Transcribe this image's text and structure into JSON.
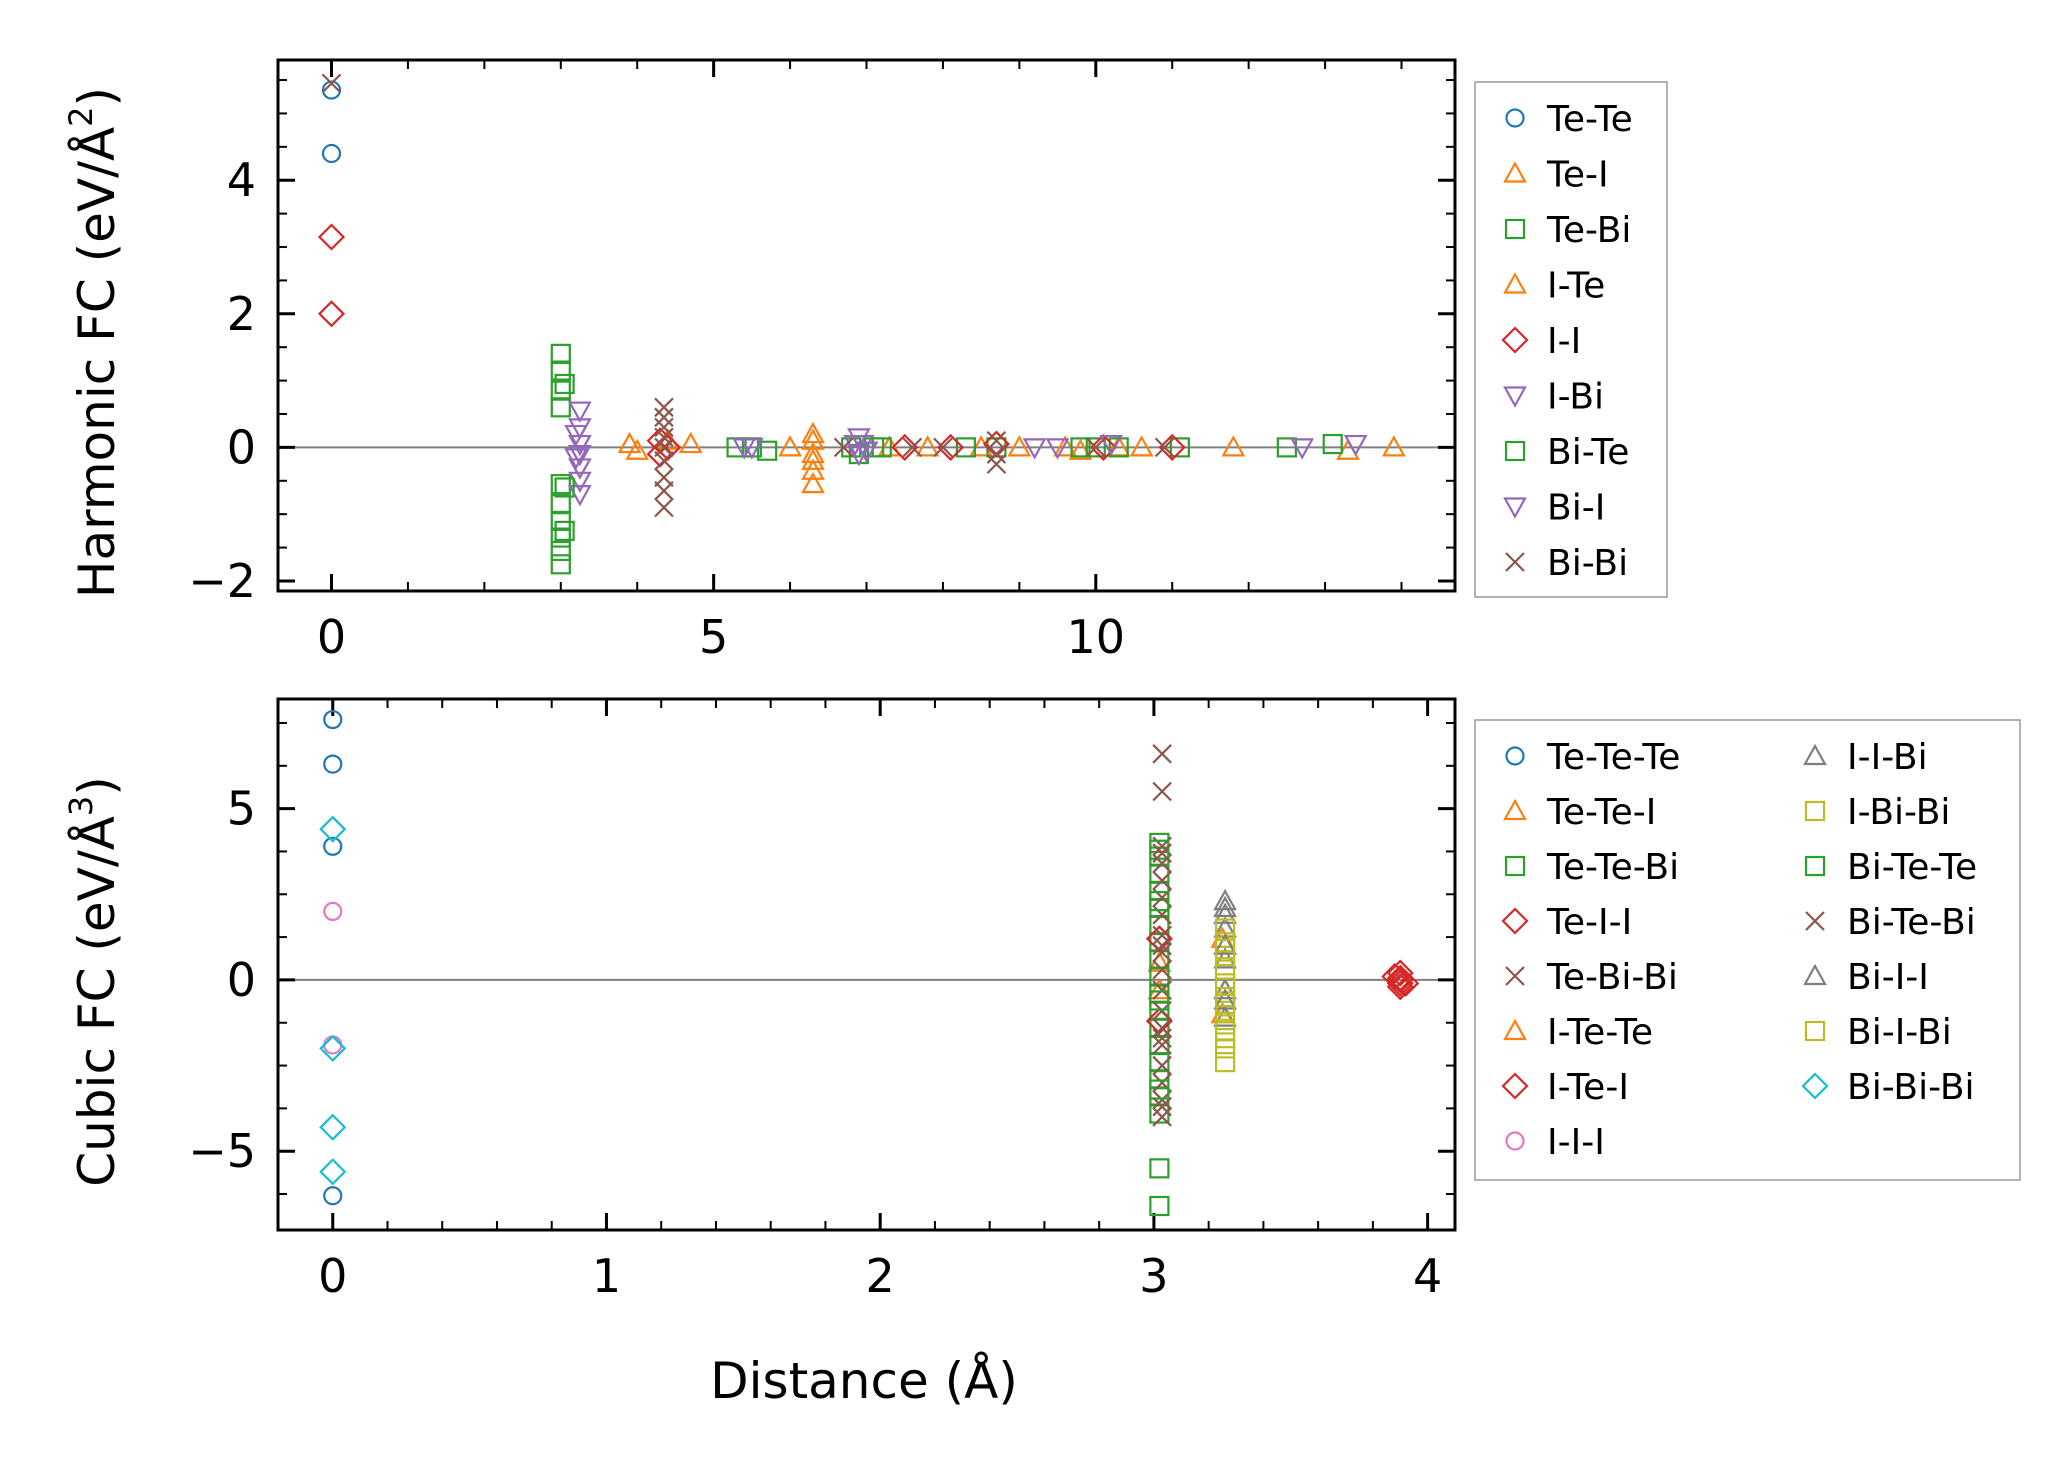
{
  "figure": {
    "xlabel": "Distance (Å)"
  },
  "chart_data": [
    {
      "type": "scatter",
      "title": "",
      "ylabel_main": "Harmonic FC (eV/Å",
      "ylabel_sup": "2",
      "ylabel_close": ")",
      "xlim": [
        -0.7,
        14.7
      ],
      "ylim": [
        -2.15,
        5.8
      ],
      "xticks": [
        0,
        5,
        10
      ],
      "xtick_labels": [
        "0",
        "5",
        "10"
      ],
      "yticks": [
        -2,
        0,
        2,
        4
      ],
      "ytick_labels": [
        "−2",
        "0",
        "2",
        "4"
      ],
      "grid": false,
      "legend_position": "right",
      "legend_columns": 1,
      "series": [
        {
          "name": "Te-Te",
          "marker": "circle",
          "color": "#1f77b4",
          "points": [
            [
              0,
              5.35
            ],
            [
              0,
              4.4
            ]
          ]
        },
        {
          "name": "Te-I",
          "marker": "triangle-up",
          "color": "#ff7f0e",
          "points": [
            [
              3.9,
              0.05
            ],
            [
              4.0,
              -0.05
            ],
            [
              4.7,
              0.05
            ],
            [
              6.3,
              0.2
            ],
            [
              6.3,
              0.1
            ],
            [
              6.3,
              -0.2
            ],
            [
              6.3,
              -0.35
            ],
            [
              6.3,
              -0.55
            ],
            [
              7.3,
              0
            ],
            [
              8.5,
              0
            ],
            [
              9.0,
              0
            ],
            [
              9.8,
              -0.05
            ],
            [
              10.3,
              0
            ],
            [
              10.6,
              0
            ],
            [
              11.8,
              0
            ],
            [
              13.3,
              -0.05
            ],
            [
              13.9,
              0
            ]
          ]
        },
        {
          "name": "Te-Bi",
          "marker": "square",
          "color": "#2ca02c",
          "points": [
            [
              3.0,
              1.4
            ],
            [
              3.0,
              1.15
            ],
            [
              3.0,
              0.85
            ],
            [
              3.0,
              0.6
            ],
            [
              3.0,
              -0.55
            ],
            [
              3.0,
              -0.85
            ],
            [
              3.0,
              -1.1
            ],
            [
              3.0,
              -1.35
            ],
            [
              3.0,
              -1.55
            ],
            [
              3.0,
              -1.75
            ],
            [
              5.3,
              0
            ],
            [
              5.5,
              0
            ],
            [
              5.7,
              -0.05
            ],
            [
              6.8,
              0
            ],
            [
              6.9,
              -0.1
            ],
            [
              7.1,
              0
            ],
            [
              8.3,
              0
            ],
            [
              8.7,
              0
            ],
            [
              10.0,
              0
            ],
            [
              10.3,
              0
            ],
            [
              11.1,
              0
            ],
            [
              12.5,
              0
            ],
            [
              13.1,
              0.05
            ]
          ]
        },
        {
          "name": "I-Te",
          "marker": "triangle-up",
          "color": "#ff7f0e",
          "points": [
            [
              4.4,
              0.1
            ],
            [
              6.0,
              0
            ],
            [
              6.3,
              -0.1
            ],
            [
              7.8,
              0
            ],
            [
              9.6,
              0
            ]
          ]
        },
        {
          "name": "I-I",
          "marker": "diamond",
          "color": "#d62728",
          "points": [
            [
              0,
              3.15
            ],
            [
              0,
              2.0
            ],
            [
              4.3,
              0.1
            ],
            [
              4.4,
              0
            ],
            [
              4.3,
              -0.1
            ],
            [
              7.5,
              0
            ],
            [
              8.1,
              0
            ],
            [
              8.7,
              0.05
            ],
            [
              10.1,
              0
            ],
            [
              11.0,
              0
            ]
          ]
        },
        {
          "name": "I-Bi",
          "marker": "triangle-down",
          "color": "#9467bd",
          "points": [
            [
              3.25,
              0.55
            ],
            [
              3.25,
              0.3
            ],
            [
              3.25,
              0.05
            ],
            [
              3.25,
              -0.1
            ],
            [
              3.25,
              -0.3
            ],
            [
              3.25,
              -0.5
            ],
            [
              3.25,
              -0.7
            ],
            [
              5.4,
              0
            ],
            [
              5.5,
              0
            ],
            [
              6.9,
              0.15
            ],
            [
              6.95,
              0.05
            ],
            [
              7.0,
              -0.05
            ],
            [
              6.9,
              -0.1
            ],
            [
              9.2,
              0
            ],
            [
              10.2,
              0.05
            ],
            [
              12.7,
              0
            ],
            [
              13.4,
              0.05
            ]
          ]
        },
        {
          "name": "Bi-Te",
          "marker": "square",
          "color": "#2ca02c",
          "points": [
            [
              3.05,
              0.95
            ],
            [
              3.05,
              -0.6
            ],
            [
              3.05,
              -1.25
            ],
            [
              7.2,
              0
            ],
            [
              9.8,
              0
            ]
          ]
        },
        {
          "name": "Bi-I",
          "marker": "triangle-down",
          "color": "#9467bd",
          "points": [
            [
              3.2,
              0.2
            ],
            [
              3.2,
              -0.15
            ],
            [
              6.85,
              0.05
            ],
            [
              7.0,
              -0.05
            ],
            [
              9.5,
              0
            ]
          ]
        },
        {
          "name": "Bi-Bi",
          "marker": "x",
          "color": "#8c564b",
          "points": [
            [
              0,
              5.45
            ],
            [
              4.35,
              0.6
            ],
            [
              4.35,
              0.45
            ],
            [
              4.35,
              0.3
            ],
            [
              4.35,
              0.15
            ],
            [
              4.35,
              0.0
            ],
            [
              4.35,
              -0.2
            ],
            [
              4.35,
              -0.45
            ],
            [
              4.35,
              -0.65
            ],
            [
              4.35,
              -0.9
            ],
            [
              6.7,
              0
            ],
            [
              7.6,
              0
            ],
            [
              8.0,
              0
            ],
            [
              8.7,
              0.1
            ],
            [
              8.7,
              -0.1
            ],
            [
              8.7,
              -0.25
            ],
            [
              10.0,
              0
            ],
            [
              10.9,
              0
            ]
          ]
        }
      ]
    },
    {
      "type": "scatter",
      "title": "",
      "ylabel_main": "Cubic FC (eV/Å",
      "ylabel_sup": "3",
      "ylabel_close": ")",
      "xlim": [
        -0.2,
        4.1
      ],
      "ylim": [
        -7.3,
        8.2
      ],
      "xticks": [
        0,
        1,
        2,
        3,
        4
      ],
      "xtick_labels": [
        "0",
        "1",
        "2",
        "3",
        "4"
      ],
      "yticks": [
        -5,
        0,
        5
      ],
      "ytick_labels": [
        "−5",
        "0",
        "5"
      ],
      "grid": false,
      "legend_position": "right",
      "legend_columns": 2,
      "series": [
        {
          "name": "Te-Te-Te",
          "marker": "circle",
          "color": "#1f77b4",
          "points": [
            [
              0,
              7.6
            ],
            [
              0,
              6.3
            ],
            [
              0,
              3.9
            ],
            [
              0,
              -6.3
            ]
          ]
        },
        {
          "name": "Te-Te-I",
          "marker": "triangle-up",
          "color": "#ff7f0e",
          "points": [
            [
              3.02,
              0.5
            ],
            [
              3.02,
              -0.3
            ]
          ]
        },
        {
          "name": "Te-Te-Bi",
          "marker": "square",
          "color": "#2ca02c",
          "points": [
            [
              3.02,
              4.0
            ],
            [
              3.02,
              3.6
            ],
            [
              3.02,
              3.1
            ],
            [
              3.02,
              2.6
            ],
            [
              3.02,
              2.1
            ],
            [
              3.02,
              1.6
            ],
            [
              3.02,
              1.1
            ],
            [
              3.02,
              0.6
            ],
            [
              3.02,
              0.1
            ],
            [
              3.02,
              -0.4
            ],
            [
              3.02,
              -0.9
            ],
            [
              3.02,
              -1.4
            ],
            [
              3.02,
              -1.9
            ],
            [
              3.02,
              -2.4
            ],
            [
              3.02,
              -2.9
            ],
            [
              3.02,
              -3.4
            ],
            [
              3.02,
              -3.9
            ],
            [
              3.02,
              -5.5
            ],
            [
              3.02,
              -6.6
            ]
          ]
        },
        {
          "name": "Te-I-I",
          "marker": "diamond",
          "color": "#d62728",
          "points": [
            [
              3.02,
              1.2
            ],
            [
              3.02,
              -1.2
            ],
            [
              3.9,
              0.05
            ],
            [
              3.9,
              -0.1
            ]
          ]
        },
        {
          "name": "Te-Bi-Bi",
          "marker": "x",
          "color": "#8c564b",
          "points": [
            [
              3.03,
              6.6
            ],
            [
              3.03,
              5.5
            ],
            [
              3.03,
              3.9
            ],
            [
              3.03,
              3.4
            ],
            [
              3.03,
              2.9
            ],
            [
              3.03,
              2.4
            ],
            [
              3.03,
              1.9
            ],
            [
              3.03,
              1.3
            ],
            [
              3.03,
              0.8
            ],
            [
              3.03,
              0.3
            ],
            [
              3.03,
              -0.3
            ],
            [
              3.03,
              -0.9
            ],
            [
              3.03,
              -1.4
            ],
            [
              3.03,
              -1.9
            ],
            [
              3.03,
              -2.5
            ],
            [
              3.03,
              -3.0
            ],
            [
              3.03,
              -3.5
            ],
            [
              3.03,
              -4.0
            ]
          ]
        },
        {
          "name": "I-Te-Te",
          "marker": "triangle-up",
          "color": "#ff7f0e",
          "points": [
            [
              3.25,
              1.2
            ],
            [
              3.25,
              -1.0
            ]
          ]
        },
        {
          "name": "I-Te-I",
          "marker": "diamond",
          "color": "#d62728",
          "points": [
            [
              3.9,
              0.2
            ],
            [
              3.9,
              -0.2
            ],
            [
              3.9,
              0.0
            ],
            [
              3.88,
              0.1
            ],
            [
              3.92,
              -0.1
            ]
          ]
        },
        {
          "name": "I-I-I",
          "marker": "circle",
          "color": "#e377c2",
          "points": [
            [
              0,
              2.0
            ],
            [
              0,
              -1.9
            ]
          ]
        },
        {
          "name": "I-I-Bi",
          "marker": "triangle-up",
          "color": "#7f7f7f",
          "points": [
            [
              3.26,
              2.3
            ],
            [
              3.26,
              1.9
            ],
            [
              3.26,
              1.5
            ],
            [
              3.26,
              0.6
            ],
            [
              3.26,
              -0.3
            ],
            [
              3.26,
              -1.1
            ]
          ]
        },
        {
          "name": "I-Bi-Bi",
          "marker": "square",
          "color": "#bcbd22",
          "points": [
            [
              3.26,
              1.5
            ],
            [
              3.26,
              1.1
            ],
            [
              3.26,
              0.7
            ],
            [
              3.26,
              0.3
            ],
            [
              3.26,
              -0.1
            ],
            [
              3.26,
              -0.5
            ],
            [
              3.26,
              -0.9
            ],
            [
              3.26,
              -1.3
            ],
            [
              3.26,
              -1.7
            ],
            [
              3.26,
              -2.0
            ],
            [
              3.26,
              -2.4
            ]
          ]
        },
        {
          "name": "Bi-Te-Te",
          "marker": "square",
          "color": "#2ca02c",
          "points": [
            [
              3.02,
              3.8
            ],
            [
              3.02,
              2.3
            ],
            [
              3.02,
              -0.6
            ],
            [
              3.02,
              -3.2
            ]
          ]
        },
        {
          "name": "Bi-Te-Bi",
          "marker": "x",
          "color": "#8c564b",
          "points": [
            [
              3.03,
              3.7
            ],
            [
              3.03,
              1.0
            ],
            [
              3.03,
              -1.7
            ],
            [
              3.03,
              -3.7
            ]
          ]
        },
        {
          "name": "Bi-I-I",
          "marker": "triangle-up",
          "color": "#7f7f7f",
          "points": [
            [
              3.26,
              2.1
            ],
            [
              3.26,
              1.0
            ],
            [
              3.26,
              -0.6
            ]
          ]
        },
        {
          "name": "Bi-I-Bi",
          "marker": "square",
          "color": "#bcbd22",
          "points": [
            [
              3.26,
              0.9
            ],
            [
              3.26,
              -0.7
            ],
            [
              3.26,
              -1.5
            ]
          ]
        },
        {
          "name": "Bi-Bi-Bi",
          "marker": "diamond",
          "color": "#17becf",
          "points": [
            [
              0,
              4.4
            ],
            [
              0,
              -2.0
            ],
            [
              0,
              -4.3
            ],
            [
              0,
              -5.6
            ]
          ]
        }
      ]
    }
  ]
}
